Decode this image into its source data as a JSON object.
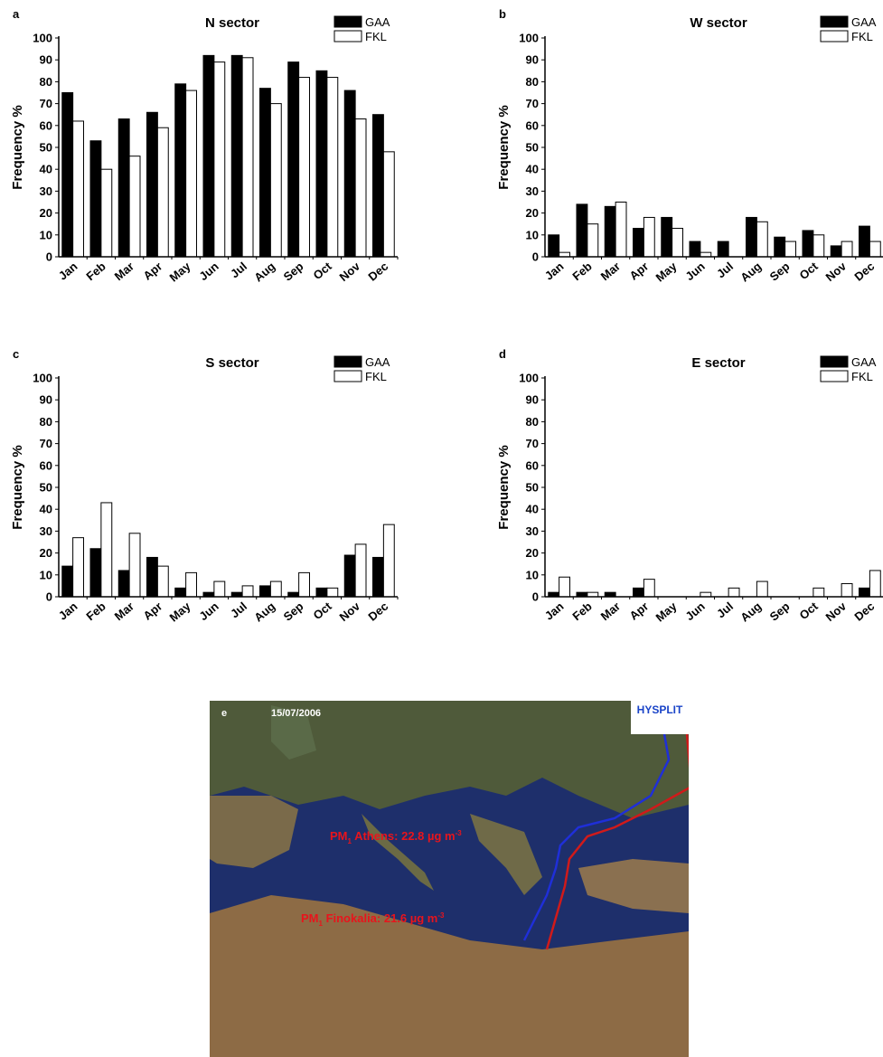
{
  "chart_data": [
    {
      "type": "bar",
      "label": "a",
      "title": "N sector",
      "ylabel": "Frequency %",
      "categories": [
        "Jan",
        "Feb",
        "Mar",
        "Apr",
        "May",
        "Jun",
        "Jul",
        "Aug",
        "Sep",
        "Oct",
        "Nov",
        "Dec"
      ],
      "series": [
        {
          "name": "GAA",
          "color": "#000000",
          "values": [
            75,
            53,
            63,
            66,
            79,
            92,
            92,
            77,
            89,
            85,
            76,
            65
          ]
        },
        {
          "name": "FKL",
          "color": "#ffffff",
          "values": [
            62,
            40,
            46,
            59,
            76,
            89,
            91,
            70,
            82,
            82,
            63,
            48
          ]
        }
      ],
      "ylim": [
        0,
        100
      ],
      "yticks": [
        0,
        10,
        20,
        30,
        40,
        50,
        60,
        70,
        80,
        90,
        100
      ]
    },
    {
      "type": "bar",
      "label": "b",
      "title": "W sector",
      "ylabel": "Frequency %",
      "categories": [
        "Jan",
        "Feb",
        "Mar",
        "Apr",
        "May",
        "Jun",
        "Jul",
        "Aug",
        "Sep",
        "Oct",
        "Nov",
        "Dec"
      ],
      "series": [
        {
          "name": "GAA",
          "color": "#000000",
          "values": [
            10,
            24,
            23,
            13,
            18,
            7,
            7,
            18,
            9,
            12,
            5,
            14
          ]
        },
        {
          "name": "FKL",
          "color": "#ffffff",
          "values": [
            2,
            15,
            25,
            18,
            13,
            2,
            0,
            16,
            7,
            10,
            7,
            7
          ]
        }
      ],
      "ylim": [
        0,
        100
      ],
      "yticks": [
        0,
        10,
        20,
        30,
        40,
        50,
        60,
        70,
        80,
        90,
        100
      ]
    },
    {
      "type": "bar",
      "label": "c",
      "title": "S sector",
      "ylabel": "Frequency %",
      "categories": [
        "Jan",
        "Feb",
        "Mar",
        "Apr",
        "May",
        "Jun",
        "Jul",
        "Aug",
        "Sep",
        "Oct",
        "Nov",
        "Dec"
      ],
      "series": [
        {
          "name": "GAA",
          "color": "#000000",
          "values": [
            14,
            22,
            12,
            18,
            4,
            2,
            2,
            5,
            2,
            4,
            19,
            18
          ]
        },
        {
          "name": "FKL",
          "color": "#ffffff",
          "values": [
            27,
            43,
            29,
            14,
            11,
            7,
            5,
            7,
            11,
            4,
            24,
            33
          ]
        }
      ],
      "ylim": [
        0,
        100
      ],
      "yticks": [
        0,
        10,
        20,
        30,
        40,
        50,
        60,
        70,
        80,
        90,
        100
      ]
    },
    {
      "type": "bar",
      "label": "d",
      "title": "E sector",
      "ylabel": "Frequency %",
      "categories": [
        "Jan",
        "Feb",
        "Mar",
        "Apr",
        "May",
        "Jun",
        "Jul",
        "Aug",
        "Sep",
        "Oct",
        "Nov",
        "Dec"
      ],
      "series": [
        {
          "name": "GAA",
          "color": "#000000",
          "values": [
            2,
            2,
            2,
            4,
            0,
            0,
            0,
            0,
            0,
            0,
            0,
            4
          ]
        },
        {
          "name": "FKL",
          "color": "#ffffff",
          "values": [
            9,
            2,
            0,
            8,
            0,
            2,
            4,
            7,
            0,
            4,
            6,
            12
          ]
        }
      ],
      "ylim": [
        0,
        100
      ],
      "yticks": [
        0,
        10,
        20,
        30,
        40,
        50,
        60,
        70,
        80,
        90,
        100
      ]
    }
  ],
  "map": {
    "label": "e",
    "date": "15/07/2006",
    "logo": "HYSPLIT",
    "annotations": [
      {
        "parts": [
          "PM",
          "1",
          " Athens: 22.8 µg m",
          "-3"
        ]
      },
      {
        "parts": [
          "PM",
          "1",
          " Finokalia: 21.6 µg m",
          "-3"
        ]
      }
    ]
  }
}
